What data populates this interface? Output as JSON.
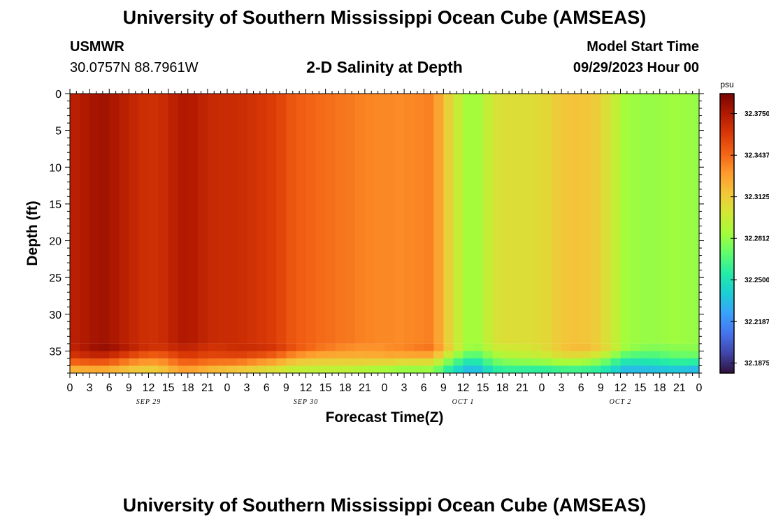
{
  "header": {
    "title": "University of Southern Mississippi Ocean Cube (AMSEAS)",
    "station": "USMWR",
    "coordinates": "30.0757N  88.7961W",
    "subtitle": "2-D Salinity at Depth",
    "model_start_label": "Model Start Time",
    "model_start_value": "09/29/2023 Hour 00"
  },
  "footer": {
    "title": "University of Southern Mississippi Ocean Cube (AMSEAS)"
  },
  "chart_data": {
    "type": "heatmap",
    "xlabel": "Forecast Time(Z)",
    "ylabel": "Depth (ft)",
    "x_hours": [
      0,
      96
    ],
    "ylim": [
      0,
      38
    ],
    "y_ticks": [
      0,
      5,
      10,
      15,
      20,
      25,
      30,
      35
    ],
    "x_tick_labels": [
      "0",
      "3",
      "6",
      "9",
      "12",
      "15",
      "18",
      "21",
      "0",
      "3",
      "6",
      "9",
      "12",
      "15",
      "18",
      "21",
      "0",
      "3",
      "6",
      "9",
      "12",
      "15",
      "18",
      "21",
      "0",
      "3",
      "6",
      "9",
      "12",
      "15",
      "18",
      "21",
      "0"
    ],
    "day_labels": [
      {
        "hour": 12,
        "label": "SEP 29"
      },
      {
        "hour": 36,
        "label": "SEP 30"
      },
      {
        "hour": 60,
        "label": "OCT 1"
      },
      {
        "hour": 84,
        "label": "OCT 2"
      }
    ],
    "colorbar": {
      "unit": "psu",
      "min": 32.18,
      "max": 32.39,
      "ticks": [
        "32.3750",
        "32.3437",
        "32.3125",
        "32.2812",
        "32.2500",
        "32.2187",
        "32.1875"
      ],
      "colors": [
        "#30123b",
        "#4145ab",
        "#4675ed",
        "#39a2fc",
        "#1bcfd4",
        "#24eca6",
        "#61fc6c",
        "#a4fc3b",
        "#d1e834",
        "#f3c63a",
        "#fe9b2d",
        "#f36315",
        "#d93806",
        "#b11901",
        "#7a0402"
      ]
    },
    "surface_salinity": [
      32.372,
      32.375,
      32.378,
      32.379,
      32.376,
      32.372,
      32.368,
      32.365,
      32.364,
      32.366,
      32.371,
      32.375,
      32.374,
      32.37,
      32.367,
      32.366,
      32.366,
      32.365,
      32.363,
      32.361,
      32.359,
      32.355,
      32.35,
      32.347,
      32.345,
      32.343,
      32.342,
      32.34,
      32.339,
      32.337,
      32.336,
      32.335,
      32.335,
      32.334,
      32.335,
      32.336,
      32.337,
      32.327,
      32.31,
      32.296,
      32.285,
      32.285,
      32.295,
      32.303,
      32.305,
      32.305,
      32.305,
      32.306,
      32.308,
      32.312,
      32.315,
      32.316,
      32.315,
      32.312,
      32.305,
      32.295,
      32.285,
      32.283,
      32.282,
      32.282,
      32.283,
      32.284,
      32.283,
      32.282
    ],
    "bottom_layers": [
      {
        "depth": [
          34,
          35
        ],
        "offset": -0.001
      },
      {
        "depth": [
          35,
          36
        ],
        "offset": -0.012
      },
      {
        "depth": [
          36,
          37
        ],
        "offset": -0.03
      },
      {
        "depth": [
          37,
          38
        ],
        "offset": -0.05
      }
    ]
  }
}
